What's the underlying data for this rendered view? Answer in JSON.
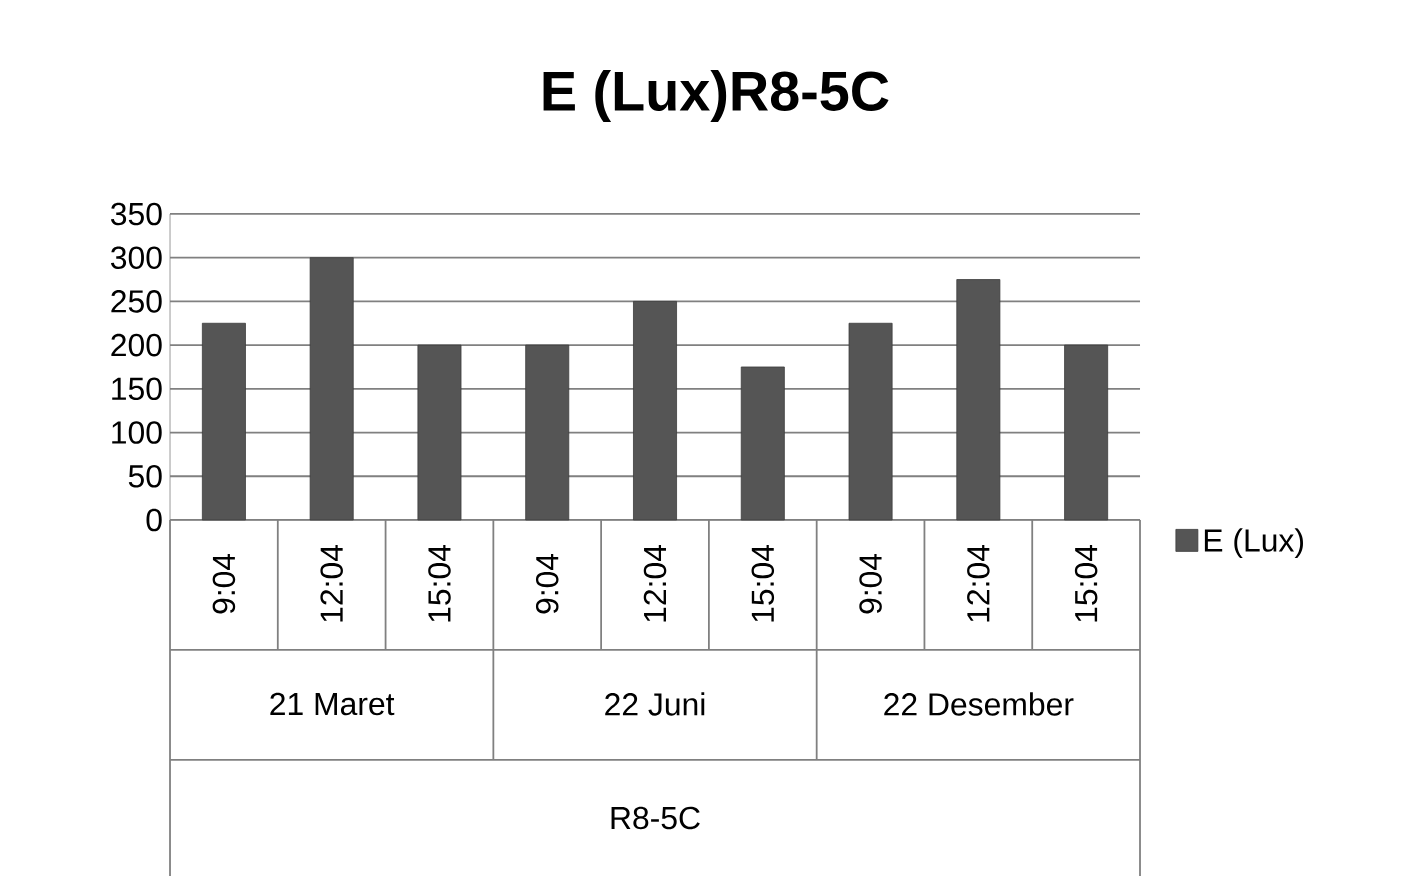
{
  "chart_data": {
    "type": "bar",
    "title": "E (Lux)R8-5C",
    "categories": [
      "9:04",
      "12:04",
      "15:04",
      "9:04",
      "12:04",
      "15:04",
      "9:04",
      "12:04",
      "15:04"
    ],
    "annotations": [
      "21 Maret",
      "22 Juni",
      "22 Desember",
      "R8-5C"
    ],
    "series": [
      {
        "name": "E (Lux)",
        "color": "#555555",
        "values": [
          225,
          300,
          200,
          200,
          250,
          175,
          225,
          275,
          200
        ]
      }
    ],
    "ylim": [
      0,
      350
    ],
    "yticks": [
      0,
      50,
      100,
      150,
      200,
      250,
      300,
      350
    ],
    "grid": "y",
    "legend": "right"
  }
}
